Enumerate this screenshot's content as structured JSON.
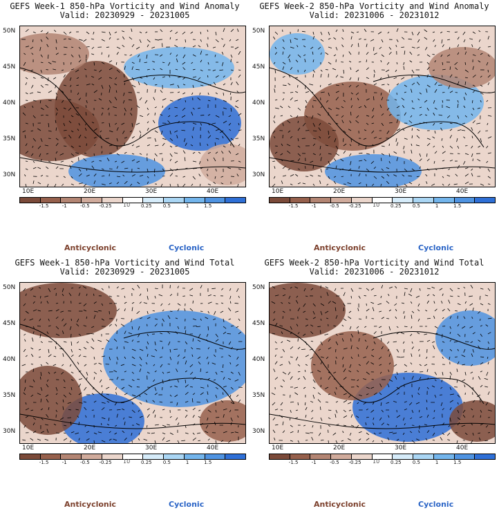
{
  "panels": [
    {
      "title": "GEFS Week-1 850-hPa Vorticity and Wind Anomaly",
      "valid": "Valid: 20230929 - 20231005"
    },
    {
      "title": "GEFS Week-2 850-hPa Vorticity and Wind Anomaly",
      "valid": "Valid: 20231006 - 20231012"
    },
    {
      "title": "GEFS Week-1 850-hPa Vorticity and Wind Total",
      "valid": "Valid: 20230929 - 20231005"
    },
    {
      "title": "GEFS Week-2 850-hPa Vorticity and Wind Total",
      "valid": "Valid: 20231006 - 20231012"
    }
  ],
  "map": {
    "lat_labels": [
      "50N",
      "45N",
      "40N",
      "35N",
      "30N"
    ],
    "lon_labels": [
      "10E",
      "20E",
      "30E",
      "40E"
    ]
  },
  "colorbar": {
    "labels": [
      "-1.5",
      "-1",
      "-0.5",
      "-0.25",
      "0.25",
      "0.5",
      "1",
      "1.5"
    ],
    "unit": "10",
    "colors": [
      "#7b4a39",
      "#96604c",
      "#b38573",
      "#d0ab9c",
      "#ebd6cc",
      "#ffffff",
      "#d6ecfa",
      "#aad6f4",
      "#73b5ec",
      "#4f93e1",
      "#2e6fd6"
    ]
  },
  "legend": {
    "anticyclonic": "Anticyclonic",
    "cyclonic": "Cyclonic"
  }
}
